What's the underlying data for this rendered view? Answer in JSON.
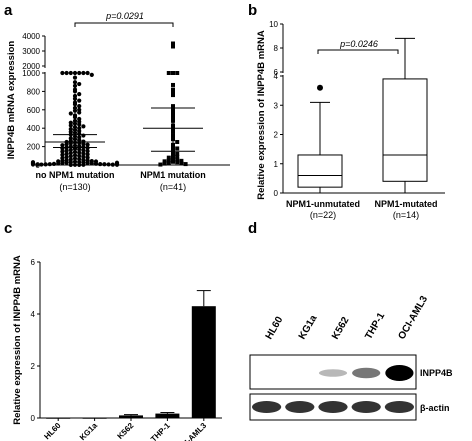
{
  "panels": {
    "a": {
      "letter": "a",
      "pvalue_label": "p=0.0291"
    },
    "b": {
      "letter": "b",
      "pvalue_label": "p=0.0246"
    },
    "c": {
      "letter": "c"
    },
    "d": {
      "letter": "d",
      "lane_labels": [
        "HL60",
        "KG1a",
        "K562",
        "THP-1",
        "OCI-AML3"
      ],
      "band_labels": [
        "INPP4B",
        "β-actin"
      ],
      "inpp4b_band_intensity": [
        0.0,
        0.0,
        0.15,
        0.45,
        1.0
      ],
      "actin_band_intensity": [
        0.8,
        0.8,
        0.8,
        0.8,
        0.8
      ]
    }
  },
  "chart_data": [
    {
      "type": "scatter",
      "title": "",
      "xlabel": "",
      "ylabel": "INPP4B mRNA expression",
      "axis_break": [
        1000,
        2000
      ],
      "ytick_labels": [
        "0",
        "200",
        "400",
        "600",
        "800",
        "1000",
        "2000",
        "3000",
        "4000"
      ],
      "ytick_values": [
        0,
        200,
        400,
        600,
        800,
        1000,
        2000,
        3000,
        4000
      ],
      "categories": [
        "no NPM1 mutation",
        "NPM1 mutation"
      ],
      "category_counts": [
        "(n=130)",
        "(n=41)"
      ],
      "series": [
        {
          "summary_mean": 250,
          "summary_upper": 330,
          "summary_lower": 190,
          "values": [
            1580,
            1530,
            1440,
            1390,
            1240,
            1100,
            1060,
            980,
            950,
            900,
            880,
            860,
            820,
            800,
            770,
            750,
            720,
            700,
            680,
            660,
            640,
            620,
            600,
            590,
            570,
            560,
            540,
            520,
            500,
            480,
            470,
            460,
            450,
            440,
            430,
            420,
            410,
            400,
            390,
            380,
            370,
            360,
            350,
            340,
            330,
            320,
            310,
            300,
            290,
            280,
            270,
            260,
            255,
            250,
            245,
            240,
            235,
            230,
            225,
            220,
            215,
            210,
            205,
            200,
            195,
            190,
            185,
            180,
            175,
            170,
            165,
            160,
            155,
            150,
            145,
            140,
            135,
            130,
            125,
            120,
            115,
            110,
            105,
            100,
            95,
            90,
            85,
            80,
            75,
            70,
            65,
            60,
            55,
            50,
            48,
            45,
            42,
            40,
            38,
            35,
            32,
            30,
            28,
            25,
            22,
            20,
            18,
            16,
            14,
            12,
            10,
            9,
            8,
            7,
            6,
            5,
            4,
            3,
            2,
            1,
            1,
            2,
            3,
            5,
            8,
            12,
            15,
            20,
            25,
            30
          ]
        },
        {
          "summary_mean": 400,
          "summary_upper": 620,
          "summary_lower": 150,
          "values": [
            3500,
            3300,
            1170,
            1160,
            1090,
            870,
            820,
            790,
            760,
            640,
            600,
            560,
            520,
            480,
            430,
            400,
            360,
            320,
            280,
            250,
            220,
            200,
            180,
            160,
            140,
            120,
            100,
            90,
            80,
            70,
            60,
            50,
            45,
            40,
            35,
            30,
            25,
            20,
            15,
            10,
            5
          ]
        }
      ]
    },
    {
      "type": "box",
      "title": "",
      "xlabel": "",
      "ylabel": "Relative expression of INPP4B mRNA",
      "axis_break": [
        4,
        5
      ],
      "ytick_labels": [
        "0",
        "1",
        "2",
        "3",
        "4",
        "6",
        "8",
        "10"
      ],
      "ytick_values": [
        0,
        1,
        2,
        3,
        4,
        6,
        8,
        10
      ],
      "categories": [
        "NPM1-unmutated",
        "NPM1-mutated"
      ],
      "category_counts": [
        "(n=22)",
        "(n=14)"
      ],
      "boxes": [
        {
          "whisker_low": 0,
          "q1": 0.2,
          "median": 0.6,
          "q3": 1.3,
          "whisker_high": 3.1,
          "outliers": [
            3.6
          ]
        },
        {
          "whisker_low": 0,
          "q1": 0.4,
          "median": 1.3,
          "q3": 3.9,
          "whisker_high": 8.8,
          "outliers": []
        }
      ]
    },
    {
      "type": "bar",
      "title": "",
      "xlabel": "",
      "ylabel": "Relative expression of INPP4B mRNA",
      "ylim": [
        0,
        6
      ],
      "ytick_labels": [
        "0",
        "2",
        "4",
        "6"
      ],
      "ytick_values": [
        0,
        2,
        4,
        6
      ],
      "categories": [
        "HL60",
        "KG1a",
        "K562",
        "THP-1",
        "OCI-AML3"
      ],
      "values": [
        0.01,
        0.01,
        0.1,
        0.17,
        4.3
      ],
      "errors": [
        0,
        0,
        0.03,
        0.04,
        0.6
      ]
    }
  ]
}
